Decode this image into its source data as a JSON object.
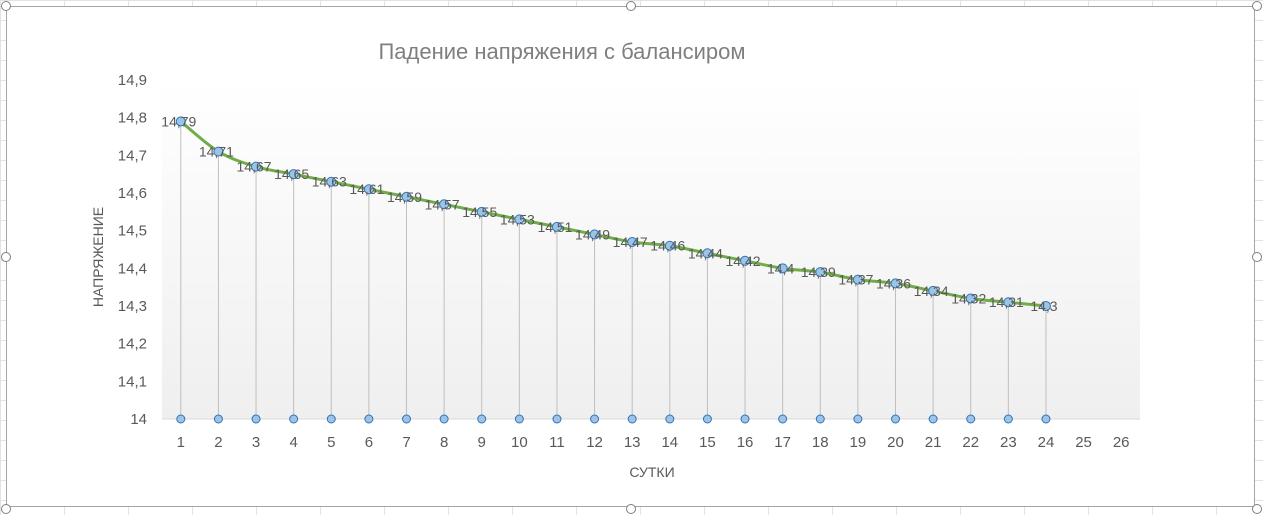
{
  "chart_data": {
    "type": "line",
    "title": "Падение напряжения с балансиром",
    "xlabel": "СУТКИ",
    "ylabel": "НАПРЯЖЕНИЕ",
    "x_ticks": [
      "1",
      "2",
      "3",
      "4",
      "5",
      "6",
      "7",
      "8",
      "9",
      "10",
      "11",
      "12",
      "13",
      "14",
      "15",
      "16",
      "17",
      "18",
      "19",
      "20",
      "21",
      "22",
      "23",
      "24",
      "25",
      "26"
    ],
    "y_ticks": [
      "14",
      "14,1",
      "14,2",
      "14,3",
      "14,4",
      "14,5",
      "14,6",
      "14,7",
      "14,8",
      "14,9"
    ],
    "ylim": [
      14,
      14.9
    ],
    "grid": false,
    "legend": "none",
    "series": [
      {
        "values": [
          14.79,
          14.71,
          14.67,
          14.65,
          14.63,
          14.61,
          14.59,
          14.57,
          14.55,
          14.53,
          14.51,
          14.49,
          14.47,
          14.46,
          14.44,
          14.42,
          14.4,
          14.39,
          14.37,
          14.36,
          14.34,
          14.32,
          14.31,
          14.3
        ],
        "labels": [
          "14,79",
          "14,71",
          "14,67",
          "14,65",
          "14,63",
          "14,61",
          "14,59",
          "14,57",
          "14,55",
          "14,53",
          "14,51",
          "14,49",
          "14,47",
          "14,46",
          "14,44",
          "14,42",
          "14,4",
          "14,39",
          "14,37",
          "14,36",
          "14,34",
          "14,32",
          "14,31",
          "14,3"
        ]
      }
    ],
    "colors": {
      "line": "#70ad47",
      "marker_fill": "#9dc3e6",
      "marker_stroke": "#2e75b6",
      "drop_line": "#bfbfbf",
      "title": "#7f7f7f",
      "text": "#595959",
      "axis": "#d9d9d9"
    }
  }
}
